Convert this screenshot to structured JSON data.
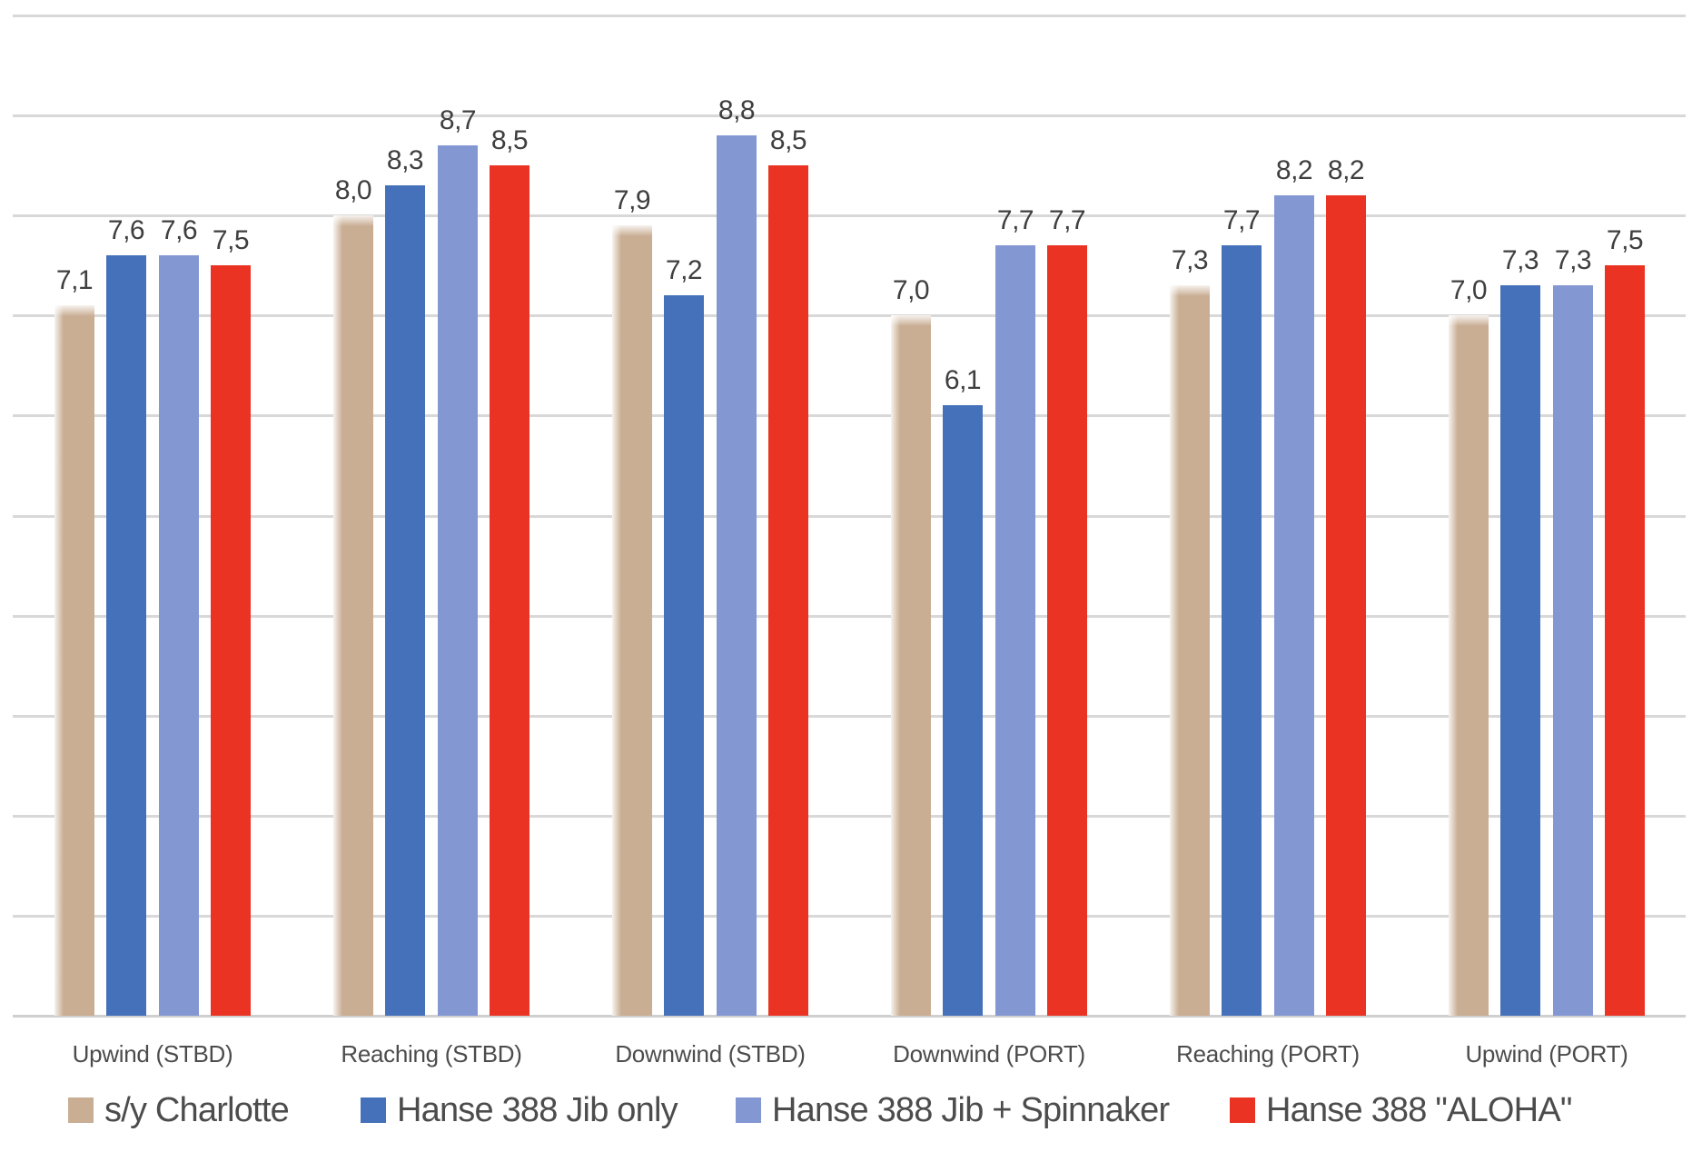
{
  "chart_data": {
    "type": "bar",
    "title": "",
    "categories": [
      "Upwind (STBD)",
      "Reaching (STBD)",
      "Downwind (STBD)",
      "Downwind (PORT)",
      "Reaching (PORT)",
      "Upwind (PORT)"
    ],
    "series": [
      {
        "name": "s/y Charlotte",
        "color": "#C9AE94",
        "values": [
          7.1,
          8.0,
          7.9,
          7.0,
          7.3,
          7.0
        ]
      },
      {
        "name": "Hanse 388 Jib only",
        "color": "#4471B9",
        "values": [
          7.6,
          8.3,
          7.2,
          6.1,
          7.7,
          7.3
        ]
      },
      {
        "name": "Hanse 388 Jib + Spinnaker",
        "color": "#8397D3",
        "values": [
          7.6,
          8.7,
          8.8,
          7.7,
          8.2,
          7.3
        ]
      },
      {
        "name": "Hanse 388 \"ALOHA\"",
        "color": "#EA3323",
        "values": [
          7.5,
          8.5,
          8.5,
          7.7,
          8.2,
          7.5
        ]
      }
    ],
    "ylim": [
      0,
      10
    ],
    "gridline_step": 1,
    "grid": true,
    "y_axis_labels_visible": false,
    "value_labels": true,
    "decimal_separator": ",",
    "legend_position": "bottom",
    "xlabel": "",
    "ylabel": ""
  },
  "colors": {
    "background": "#ffffff",
    "gridline": "#d8d8d8",
    "axis_line": "#cfcfcf",
    "value_label_text": "#3f3f3f",
    "category_text": "#4c4c4c",
    "legend_text": "#4c4c4c"
  }
}
